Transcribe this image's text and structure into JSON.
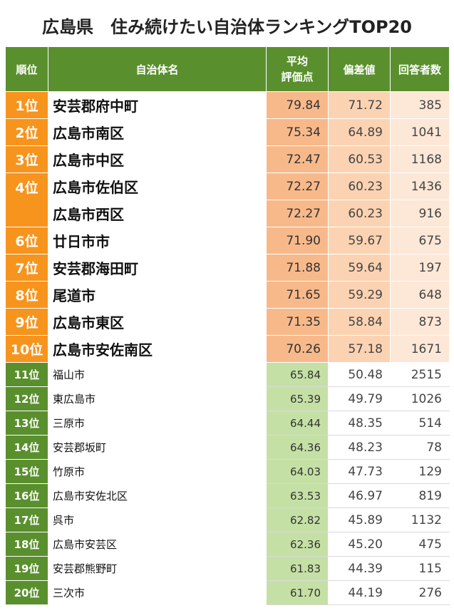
{
  "title": "広島県　住み続けたい自治体ランキングTOP20",
  "headers": {
    "rank": "順位",
    "name": "自治体名",
    "avg_line1": "平均",
    "avg_line2": "評価点",
    "deviation": "偏差値",
    "respondents": "回答者数"
  },
  "colors": {
    "header_green": "#5a8f2e",
    "top_orange": "#f7941d",
    "avg_orange": "#f8b98a",
    "avg_green": "#c5e0a5"
  },
  "rows": [
    {
      "rank": "1位",
      "name": "安芸郡府中町",
      "avg": "79.84",
      "dev": "71.72",
      "count": "385"
    },
    {
      "rank": "2位",
      "name": "広島市南区",
      "avg": "75.34",
      "dev": "64.89",
      "count": "1041"
    },
    {
      "rank": "3位",
      "name": "広島市中区",
      "avg": "72.47",
      "dev": "60.53",
      "count": "1168"
    },
    {
      "rank": "4位",
      "name": "広島市佐伯区",
      "avg": "72.27",
      "dev": "60.23",
      "count": "1436"
    },
    {
      "rank": "",
      "name": "広島市西区",
      "avg": "72.27",
      "dev": "60.23",
      "count": "916"
    },
    {
      "rank": "6位",
      "name": "廿日市市",
      "avg": "71.90",
      "dev": "59.67",
      "count": "675"
    },
    {
      "rank": "7位",
      "name": "安芸郡海田町",
      "avg": "71.88",
      "dev": "59.64",
      "count": "197"
    },
    {
      "rank": "8位",
      "name": "尾道市",
      "avg": "71.65",
      "dev": "59.29",
      "count": "648"
    },
    {
      "rank": "9位",
      "name": "広島市東区",
      "avg": "71.35",
      "dev": "58.84",
      "count": "873"
    },
    {
      "rank": "10位",
      "name": "広島市安佐南区",
      "avg": "70.26",
      "dev": "57.18",
      "count": "1671"
    },
    {
      "rank": "11位",
      "name": "福山市",
      "avg": "65.84",
      "dev": "50.48",
      "count": "2515"
    },
    {
      "rank": "12位",
      "name": "東広島市",
      "avg": "65.39",
      "dev": "49.79",
      "count": "1026"
    },
    {
      "rank": "13位",
      "name": "三原市",
      "avg": "64.44",
      "dev": "48.35",
      "count": "514"
    },
    {
      "rank": "14位",
      "name": "安芸郡坂町",
      "avg": "64.36",
      "dev": "48.23",
      "count": "78"
    },
    {
      "rank": "15位",
      "name": "竹原市",
      "avg": "64.03",
      "dev": "47.73",
      "count": "129"
    },
    {
      "rank": "16位",
      "name": "広島市安佐北区",
      "avg": "63.53",
      "dev": "46.97",
      "count": "819"
    },
    {
      "rank": "17位",
      "name": "呉市",
      "avg": "62.82",
      "dev": "45.89",
      "count": "1132"
    },
    {
      "rank": "18位",
      "name": "広島市安芸区",
      "avg": "62.36",
      "dev": "45.20",
      "count": "475"
    },
    {
      "rank": "19位",
      "name": "安芸郡熊野町",
      "avg": "61.83",
      "dev": "44.39",
      "count": "115"
    },
    {
      "rank": "20位",
      "name": "三次市",
      "avg": "61.70",
      "dev": "44.19",
      "count": "276"
    }
  ]
}
